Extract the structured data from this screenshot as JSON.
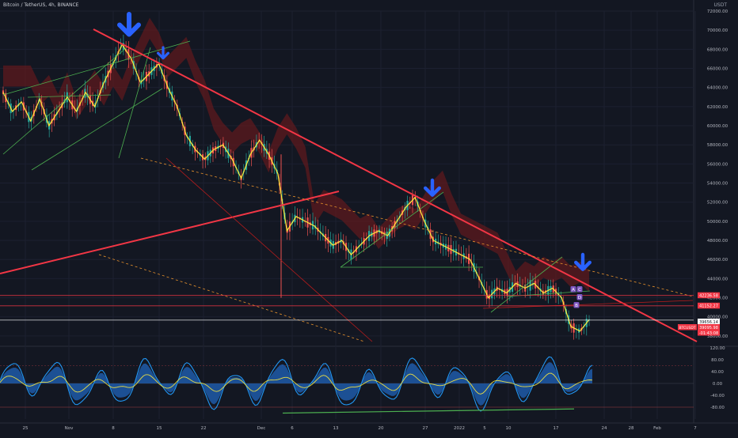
{
  "header": {
    "symbol_title": "Bitcoin / TetherUS, 4h, BINANCE",
    "currency": "USDT"
  },
  "chart_data": [
    {
      "type": "line",
      "title": "Bitcoin / TetherUS, 4h, BINANCE",
      "ylabel": "USDT",
      "ylim": [
        37000,
        72000
      ],
      "y_ticks": [
        38000,
        40000,
        42000,
        44000,
        46000,
        48000,
        50000,
        52000,
        54000,
        56000,
        58000,
        60000,
        62000,
        64000,
        66000,
        68000,
        70000,
        72000
      ],
      "y_tick_labels": [
        "38000.00",
        "40000.00",
        "42000.00",
        "44000.00",
        "46000.00",
        "48000.00",
        "50000.00",
        "52000.00",
        "54000.00",
        "56000.00",
        "58000.00",
        "60000.00",
        "62000.00",
        "64000.00",
        "66000.00",
        "68000.00",
        "70000.00",
        "72000.00"
      ],
      "x_tick_labels": [
        "25",
        "Nov",
        "8",
        "15",
        "22",
        "Dec",
        "6",
        "13",
        "20",
        "27",
        "2022",
        "5",
        "10",
        "17",
        "24",
        "28",
        "Feb",
        "7"
      ],
      "series": [
        {
          "values": [
            63500,
            61500,
            62500,
            60500,
            62800,
            60000,
            61500,
            63000,
            61500,
            63500,
            62000,
            64500,
            66500,
            68500,
            67000,
            64500,
            65500,
            66500,
            64000,
            62000,
            59000,
            57500,
            56500,
            57500,
            58000,
            56500,
            54500,
            57000,
            58500,
            57000,
            55000,
            49000,
            50500,
            50000,
            49500,
            48500,
            47500,
            48000,
            46500,
            47500,
            48500,
            49000,
            48500,
            50000,
            51500,
            52500,
            50000,
            48000,
            47500,
            47000,
            46500,
            46000,
            44000,
            42000,
            43000,
            42500,
            43500,
            43000,
            43500,
            42500,
            43000,
            42000,
            39000,
            38500,
            39700
          ]
        }
      ],
      "price_labels": [
        {
          "value": 42236.58,
          "text": "42236.58",
          "color": "#f23645"
        },
        {
          "value": 41152.27,
          "text": "41152.27",
          "color": "#f23645"
        },
        {
          "value": 39656.14,
          "text": "39656.14",
          "color": "#ffffff"
        },
        {
          "value": 39095.98,
          "text": "39095.98",
          "color": "#f23645",
          "tag": "BTCUSDT"
        },
        {
          "value": 38500,
          "text": "-01:43:08",
          "color": "#f23645"
        }
      ],
      "annotations": [
        {
          "text": "A",
          "color": "#7e57c2"
        },
        {
          "text": "C",
          "color": "#7e57c2"
        },
        {
          "text": "D",
          "color": "#7e57c2"
        },
        {
          "text": "B",
          "color": "#7e57c2"
        }
      ],
      "colors": {
        "trendline": "#f23645",
        "arrow": "#2962ff",
        "channel_green": "#4caf50",
        "moving_average": "#ffeb3b",
        "cloud": "#5d1a1e"
      }
    },
    {
      "type": "area",
      "ylim": [
        -120,
        120
      ],
      "y_ticks": [
        120,
        80,
        40,
        0,
        -40,
        -80
      ],
      "y_tick_labels": [
        "120.00",
        "80.00",
        "40.00",
        "0.00",
        "-40.00",
        "-80.00"
      ],
      "colors": {
        "wave_line": "#2196f3",
        "wave_fill": "#1e5aa8",
        "signal": "#ff5252",
        "mid": "#ffeb3b",
        "divergence": "#4caf50"
      }
    }
  ]
}
